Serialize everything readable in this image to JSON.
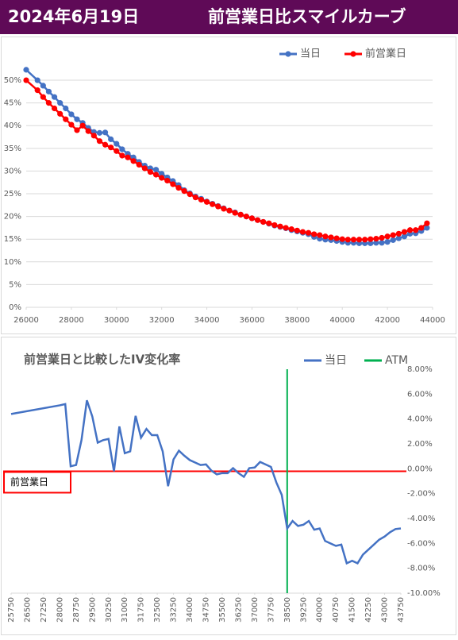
{
  "header": {
    "date": "2024年6月19日",
    "title": "前営業日比スマイルカーブ"
  },
  "chart_data": [
    {
      "type": "line",
      "markers": true,
      "x": [
        26000,
        26500,
        26750,
        27000,
        27250,
        27500,
        27750,
        28000,
        28250,
        28500,
        28750,
        29000,
        29250,
        29500,
        29750,
        30000,
        30250,
        30500,
        30750,
        31000,
        31250,
        31500,
        31750,
        32000,
        32250,
        32500,
        32750,
        33000,
        33250,
        33500,
        33750,
        34000,
        34250,
        34500,
        34750,
        35000,
        35250,
        35500,
        35750,
        36000,
        36250,
        36500,
        36750,
        37000,
        37250,
        37500,
        37750,
        38000,
        38250,
        38500,
        38750,
        39000,
        39250,
        39500,
        39750,
        40000,
        40250,
        40500,
        40750,
        41000,
        41250,
        41500,
        41750,
        42000,
        42250,
        42500,
        42750,
        43000,
        43250,
        43500,
        43750
      ],
      "series": [
        {
          "name": "当日",
          "color": "#4472c4",
          "values": [
            52.3,
            50.0,
            48.8,
            47.5,
            46.3,
            45.0,
            43.8,
            42.5,
            41.4,
            40.6,
            39.5,
            38.6,
            38.4,
            38.5,
            37.0,
            36.0,
            34.8,
            33.8,
            33.0,
            32.0,
            31.2,
            30.6,
            30.3,
            29.4,
            28.6,
            27.8,
            26.9,
            25.8,
            25.1,
            24.4,
            23.9,
            23.3,
            22.8,
            22.3,
            21.8,
            21.3,
            20.9,
            20.4,
            20.0,
            19.6,
            19.2,
            18.8,
            18.4,
            18.0,
            17.7,
            17.4,
            17.0,
            16.7,
            16.4,
            16.1,
            15.5,
            15.1,
            14.9,
            14.8,
            14.6,
            14.4,
            14.2,
            14.2,
            14.1,
            14.1,
            14.1,
            14.2,
            14.2,
            14.4,
            14.8,
            15.2,
            15.6,
            16.2,
            16.3,
            16.8,
            17.5
          ]
        },
        {
          "name": "前営業日",
          "color": "#ff0000",
          "values": [
            50.0,
            47.8,
            46.3,
            45.0,
            43.8,
            42.6,
            41.4,
            40.2,
            39.0,
            40.0,
            38.8,
            37.8,
            36.6,
            35.8,
            35.2,
            34.4,
            33.4,
            33.0,
            32.2,
            31.4,
            30.6,
            29.8,
            29.2,
            28.5,
            27.9,
            27.1,
            26.3,
            25.6,
            24.9,
            24.2,
            23.7,
            23.2,
            22.7,
            22.2,
            21.7,
            21.3,
            20.8,
            20.4,
            20.0,
            19.6,
            19.2,
            18.8,
            18.5,
            18.1,
            17.8,
            17.5,
            17.2,
            16.9,
            16.6,
            16.4,
            16.1,
            15.9,
            15.6,
            15.4,
            15.2,
            15.0,
            14.9,
            14.9,
            14.9,
            14.9,
            15.0,
            15.1,
            15.3,
            15.6,
            15.9,
            16.2,
            16.6,
            17.0,
            17.0,
            17.5,
            18.5
          ]
        }
      ],
      "xlim": [
        26000,
        44000
      ],
      "xticks": [
        26000,
        28000,
        30000,
        32000,
        34000,
        36000,
        38000,
        40000,
        42000,
        44000
      ],
      "ylim": [
        0,
        52
      ],
      "yticks": [
        {
          "value": 0,
          "label": "0%"
        },
        {
          "value": 5,
          "label": "5%"
        },
        {
          "value": 10,
          "label": "10%"
        },
        {
          "value": 15,
          "label": "15%"
        },
        {
          "value": 20,
          "label": "20%"
        },
        {
          "value": 25,
          "label": "25%"
        },
        {
          "value": 30,
          "label": "30%"
        },
        {
          "value": 35,
          "label": "35%"
        },
        {
          "value": 40,
          "label": "40%"
        },
        {
          "value": 45,
          "label": "45%"
        },
        {
          "value": 50,
          "label": "50%"
        }
      ],
      "grid": true,
      "legend": "top"
    },
    {
      "type": "line",
      "markers": false,
      "title": "前営業日と比較したIV変化率",
      "x": [
        25750,
        28000,
        28250,
        28500,
        28750,
        29000,
        29250,
        29500,
        29750,
        30000,
        30250,
        30500,
        30750,
        31000,
        31250,
        31500,
        31750,
        32000,
        32250,
        32500,
        32750,
        33000,
        33250,
        33500,
        33750,
        34000,
        34250,
        34500,
        34750,
        35000,
        35250,
        35500,
        35750,
        36000,
        36250,
        36500,
        36750,
        37000,
        37250,
        37500,
        37750,
        38000,
        38250,
        38500,
        38750,
        39000,
        39250,
        39500,
        39750,
        40000,
        40250,
        40500,
        40750,
        41000,
        41250,
        41500,
        41750,
        42000,
        42250,
        42500,
        42750,
        43000,
        43250,
        43500,
        43750
      ],
      "series": [
        {
          "name": "当日",
          "color": "#4472c4",
          "values": [
            4.4,
            5.1,
            5.2,
            0.2,
            0.3,
            2.3,
            5.5,
            4.2,
            2.1,
            2.3,
            2.4,
            -0.2,
            3.4,
            1.25,
            1.4,
            4.25,
            2.5,
            3.2,
            2.7,
            2.7,
            1.4,
            -1.4,
            0.75,
            1.45,
            1.05,
            0.7,
            0.5,
            0.3,
            0.35,
            -0.15,
            -0.45,
            -0.35,
            -0.35,
            0.05,
            -0.35,
            -0.65,
            0.05,
            0.1,
            0.55,
            0.35,
            0.15,
            -1.1,
            -2.1,
            -4.8,
            -4.2,
            -4.6,
            -4.5,
            -4.2,
            -4.9,
            -4.8,
            -5.8,
            -6.0,
            -6.2,
            -6.1,
            -7.6,
            -7.4,
            -7.6,
            -6.9,
            -6.5,
            -6.1,
            -5.7,
            -5.45,
            -5.1,
            -4.85,
            -4.8
          ]
        }
      ],
      "atm_line": {
        "name": "ATM",
        "color": "#00b050",
        "x": 38500
      },
      "reference_line": {
        "label": "前営業日",
        "color": "#ff0000",
        "value": -0.2
      },
      "xlim": [
        25750,
        43750
      ],
      "xticks": [
        25750,
        26500,
        27250,
        28000,
        28750,
        29500,
        30250,
        31000,
        31750,
        32500,
        33250,
        34000,
        34750,
        35500,
        36250,
        37000,
        37750,
        38500,
        39250,
        40000,
        40750,
        41500,
        42250,
        43000,
        43750
      ],
      "ylim": [
        -10,
        8
      ],
      "yticks": [
        {
          "value": 8,
          "label": "8.00%"
        },
        {
          "value": 6,
          "label": "6.00%"
        },
        {
          "value": 4,
          "label": "4.00%"
        },
        {
          "value": 2,
          "label": "2.00%"
        },
        {
          "value": 0,
          "label": "0.00%"
        },
        {
          "value": -2,
          "label": "-2.00%"
        },
        {
          "value": -4,
          "label": "-4.00%"
        },
        {
          "value": -6,
          "label": "-6.00%"
        },
        {
          "value": -8,
          "label": "-8.00%"
        },
        {
          "value": -10,
          "label": "-10.00%"
        }
      ],
      "grid": false,
      "legend": "top-right",
      "y_axis_side": "right"
    }
  ]
}
